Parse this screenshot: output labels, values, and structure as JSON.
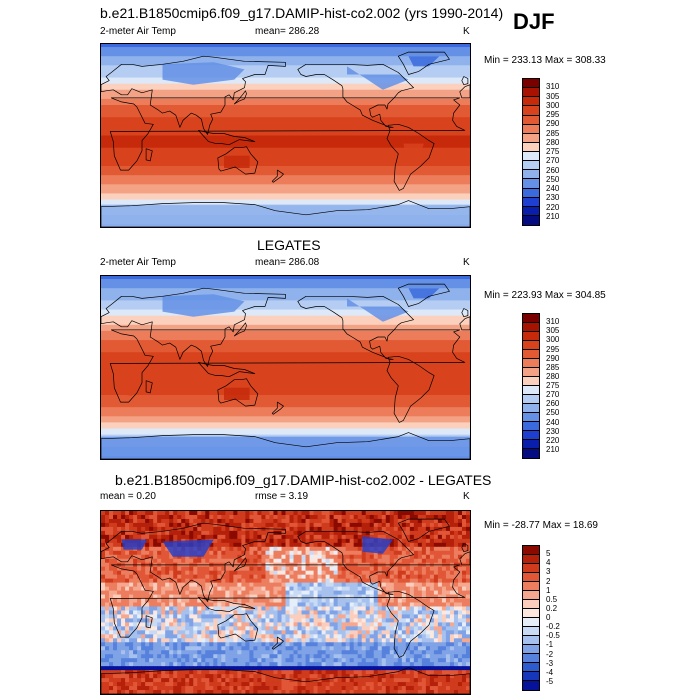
{
  "season": "DJF",
  "panels": [
    {
      "title": "b.e21.B1850cmip6.f09_g17.DAMIP-hist-co2.002 (yrs 1990-2014)",
      "left_label": "2-meter Air Temp",
      "center_label": "mean= 286.28",
      "units": "K",
      "stats": "Min = 233.13 Max = 308.33",
      "colorbar": {
        "labels": [
          "310",
          "305",
          "300",
          "295",
          "290",
          "285",
          "280",
          "275",
          "270",
          "260",
          "250",
          "240",
          "230",
          "220",
          "210"
        ],
        "colors": [
          "#7a0000",
          "#a81200",
          "#c62a0a",
          "#d8421d",
          "#e25a33",
          "#ec7c5a",
          "#f4a285",
          "#fbd0bd",
          "#dde9f8",
          "#b5cdf2",
          "#8fb2ec",
          "#6491e6",
          "#3b6ade",
          "#1e3fd0",
          "#0a1eac",
          "#050c82"
        ]
      },
      "kind": "abs"
    },
    {
      "title": "LEGATES",
      "left_label": "2-meter Air Temp",
      "center_label": "mean= 286.08",
      "units": "K",
      "stats": "Min = 223.93 Max = 304.85",
      "colorbar": {
        "labels": [
          "310",
          "305",
          "300",
          "295",
          "290",
          "285",
          "280",
          "275",
          "270",
          "260",
          "250",
          "240",
          "230",
          "220",
          "210"
        ],
        "colors": [
          "#7a0000",
          "#a81200",
          "#c62a0a",
          "#d8421d",
          "#e25a33",
          "#ec7c5a",
          "#f4a285",
          "#fbd0bd",
          "#dde9f8",
          "#b5cdf2",
          "#8fb2ec",
          "#6491e6",
          "#3b6ade",
          "#1e3fd0",
          "#0a1eac",
          "#050c82"
        ]
      },
      "kind": "abs"
    },
    {
      "title": "b.e21.B1850cmip6.f09_g17.DAMIP-hist-co2.002 - LEGATES",
      "left_label": "mean =   0.20",
      "center_label": "rmse =   3.19",
      "units": "K",
      "stats": "Min = -28.77 Max =  18.69",
      "colorbar": {
        "labels": [
          "5",
          "4",
          "3",
          "2",
          "1",
          "0.5",
          "0.2",
          "0",
          "-0.2",
          "-0.5",
          "-1",
          "-2",
          "-3",
          "-4",
          "-5"
        ],
        "colors": [
          "#8a0a00",
          "#b4200a",
          "#cf3b1c",
          "#e05636",
          "#ec7d5e",
          "#f5a88f",
          "#fbcdbd",
          "#fde8df",
          "#e6eef9",
          "#c9daf4",
          "#a6c1ee",
          "#7fa3e6",
          "#5681dc",
          "#2e5ccf",
          "#1637b9",
          "#06129a"
        ]
      },
      "kind": "diff"
    }
  ]
}
